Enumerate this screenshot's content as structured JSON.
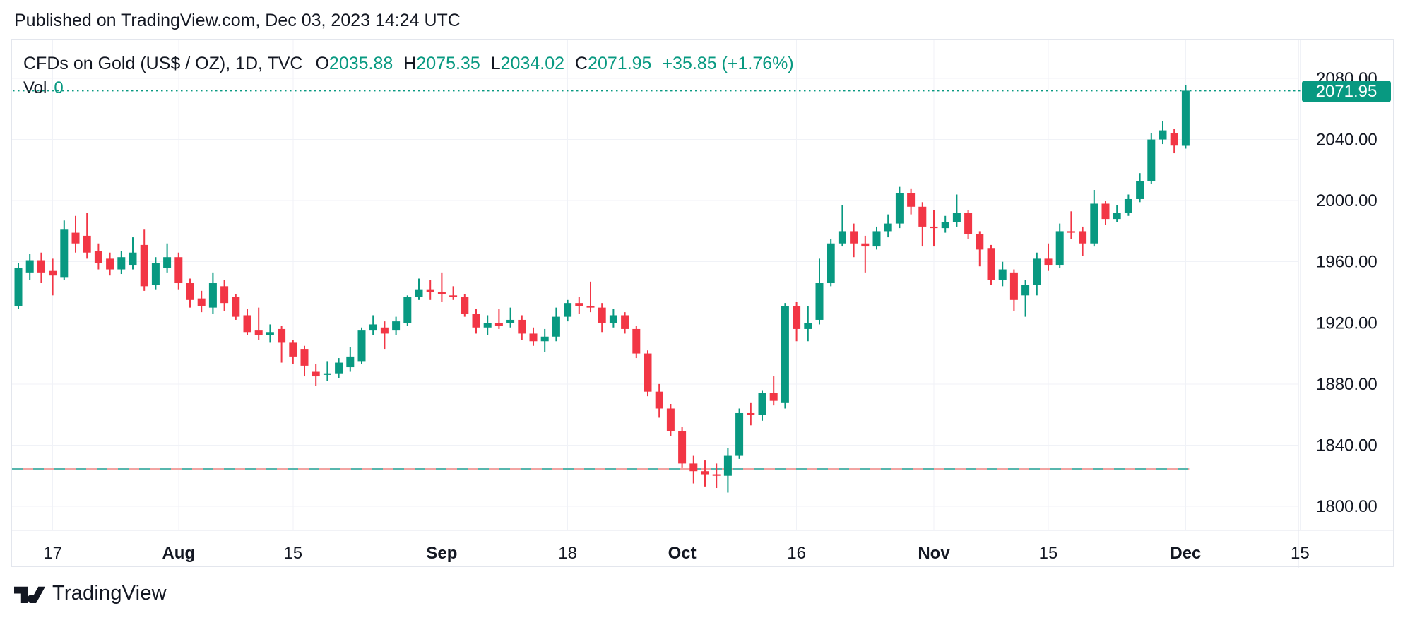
{
  "page": {
    "published": "Published on TradingView.com, Dec 03, 2023 14:24 UTC"
  },
  "legend": {
    "title": "CFDs on Gold (US$ / OZ), 1D, TVC",
    "o_label": "O",
    "o_value": "2035.88",
    "h_label": "H",
    "h_value": "2075.35",
    "l_label": "L",
    "l_value": "2034.02",
    "c_label": "C",
    "c_value": "2071.95",
    "change": "+35.85 (+1.76%)"
  },
  "volume": {
    "label": "Vol",
    "value": "0"
  },
  "price_axis": {
    "current_price_label": "2071.95"
  },
  "footer": {
    "brand": "TradingView"
  },
  "colors": {
    "up": "#089981",
    "down": "#F23645",
    "text": "#131722",
    "grid": "#F0F2F7",
    "border": "#E3E6ED",
    "level_teal": "#57B6AD",
    "level_pink": "#F2A4A2",
    "current_line": "#089981",
    "badge_bg": "#089981",
    "badge_text": "#FFFFFF"
  },
  "chart_data": {
    "type": "candlestick",
    "title": "CFDs on Gold (US$ / OZ), 1D, TVC",
    "timeframe": "1D",
    "current_price": 2071.95,
    "level_line_price": 1824.5,
    "y_axis": {
      "ticks": [
        2080,
        2040,
        2000,
        1960,
        1920,
        1880,
        1840,
        1800
      ],
      "ylim": [
        1784,
        2105
      ],
      "grid": true
    },
    "x_axis": {
      "ticks": [
        {
          "label": "17",
          "index": 3,
          "bold": false
        },
        {
          "label": "Aug",
          "index": 14,
          "bold": true
        },
        {
          "label": "15",
          "index": 24,
          "bold": false
        },
        {
          "label": "Sep",
          "index": 37,
          "bold": true
        },
        {
          "label": "18",
          "index": 48,
          "bold": false
        },
        {
          "label": "Oct",
          "index": 58,
          "bold": true
        },
        {
          "label": "16",
          "index": 68,
          "bold": false
        },
        {
          "label": "Nov",
          "index": 80,
          "bold": true
        },
        {
          "label": "15",
          "index": 90,
          "bold": false
        },
        {
          "label": "Dec",
          "index": 102,
          "bold": true
        },
        {
          "label": "15",
          "index": 112,
          "bold": false
        }
      ]
    },
    "candles": [
      [
        "2023-07-12",
        1931,
        1959,
        1929,
        1956
      ],
      [
        "2023-07-13",
        1953,
        1965,
        1948,
        1961
      ],
      [
        "2023-07-14",
        1961,
        1966,
        1946,
        1953
      ],
      [
        "2023-07-17",
        1954,
        1962,
        1938,
        1951
      ],
      [
        "2023-07-18",
        1950,
        1987,
        1948,
        1981
      ],
      [
        "2023-07-19",
        1979,
        1990,
        1966,
        1972
      ],
      [
        "2023-07-20",
        1977,
        1992,
        1962,
        1966
      ],
      [
        "2023-07-21",
        1967,
        1972,
        1955,
        1959
      ],
      [
        "2023-07-24",
        1962,
        1966,
        1951,
        1955
      ],
      [
        "2023-07-25",
        1955,
        1967,
        1952,
        1963
      ],
      [
        "2023-07-26",
        1958,
        1976,
        1955,
        1966
      ],
      [
        "2023-07-27",
        1971,
        1981,
        1941,
        1944
      ],
      [
        "2023-07-28",
        1945,
        1963,
        1942,
        1959
      ],
      [
        "2023-07-31",
        1956,
        1972,
        1953,
        1963
      ],
      [
        "2023-08-01",
        1963,
        1966,
        1942,
        1946
      ],
      [
        "2023-08-02",
        1946,
        1949,
        1930,
        1935
      ],
      [
        "2023-08-03",
        1936,
        1941,
        1927,
        1931
      ],
      [
        "2023-08-04",
        1930,
        1953,
        1926,
        1946
      ],
      [
        "2023-08-07",
        1944,
        1948,
        1928,
        1933
      ],
      [
        "2023-08-08",
        1937,
        1939,
        1922,
        1924
      ],
      [
        "2023-08-09",
        1925,
        1929,
        1912,
        1914
      ],
      [
        "2023-08-10",
        1915,
        1930,
        1909,
        1912
      ],
      [
        "2023-08-11",
        1912,
        1919,
        1907,
        1914
      ],
      [
        "2023-08-14",
        1916,
        1918,
        1894,
        1907
      ],
      [
        "2023-08-15",
        1907,
        1909,
        1893,
        1898
      ],
      [
        "2023-08-16",
        1903,
        1905,
        1885,
        1892
      ],
      [
        "2023-08-17",
        1888,
        1893,
        1879,
        1885
      ],
      [
        "2023-08-18",
        1886,
        1895,
        1882,
        1887
      ],
      [
        "2023-08-21",
        1887,
        1897,
        1884,
        1894
      ],
      [
        "2023-08-22",
        1891,
        1904,
        1888,
        1898
      ],
      [
        "2023-08-23",
        1895,
        1917,
        1893,
        1915
      ],
      [
        "2023-08-24",
        1915,
        1925,
        1912,
        1919
      ],
      [
        "2023-08-25",
        1917,
        1921,
        1903,
        1913
      ],
      [
        "2023-08-28",
        1915,
        1924,
        1912,
        1921
      ],
      [
        "2023-08-29",
        1920,
        1938,
        1918,
        1937
      ],
      [
        "2023-08-30",
        1937,
        1949,
        1935,
        1942
      ],
      [
        "2023-08-31",
        1942,
        1948,
        1935,
        1940
      ],
      [
        "2023-09-01",
        1940,
        1953,
        1934,
        1939
      ],
      [
        "2023-09-04",
        1938,
        1944,
        1935,
        1937
      ],
      [
        "2023-09-05",
        1937,
        1939,
        1924,
        1926
      ],
      [
        "2023-09-06",
        1926,
        1929,
        1913,
        1917
      ],
      [
        "2023-09-07",
        1917,
        1925,
        1912,
        1920
      ],
      [
        "2023-09-08",
        1920,
        1929,
        1916,
        1918
      ],
      [
        "2023-09-11",
        1920,
        1930,
        1917,
        1922
      ],
      [
        "2023-09-12",
        1922,
        1925,
        1909,
        1913
      ],
      [
        "2023-09-13",
        1913,
        1917,
        1905,
        1908
      ],
      [
        "2023-09-14",
        1908,
        1916,
        1901,
        1911
      ],
      [
        "2023-09-15",
        1911,
        1930,
        1908,
        1924
      ],
      [
        "2023-09-18",
        1924,
        1935,
        1921,
        1933
      ],
      [
        "2023-09-19",
        1933,
        1937,
        1926,
        1931
      ],
      [
        "2023-09-20",
        1931,
        1947,
        1927,
        1930
      ],
      [
        "2023-09-21",
        1930,
        1933,
        1914,
        1920
      ],
      [
        "2023-09-22",
        1920,
        1929,
        1917,
        1925
      ],
      [
        "2023-09-25",
        1925,
        1927,
        1913,
        1916
      ],
      [
        "2023-09-26",
        1916,
        1918,
        1897,
        1900
      ],
      [
        "2023-09-27",
        1900,
        1902,
        1872,
        1875
      ],
      [
        "2023-09-28",
        1875,
        1880,
        1858,
        1864
      ],
      [
        "2023-09-29",
        1864,
        1867,
        1846,
        1849
      ],
      [
        "2023-10-02",
        1849,
        1852,
        1825,
        1828
      ],
      [
        "2023-10-03",
        1828,
        1833,
        1815,
        1823
      ],
      [
        "2023-10-04",
        1823,
        1830,
        1813,
        1821
      ],
      [
        "2023-10-05",
        1821,
        1828,
        1812,
        1820
      ],
      [
        "2023-10-06",
        1820,
        1838,
        1809,
        1833
      ],
      [
        "2023-10-09",
        1833,
        1864,
        1831,
        1861
      ],
      [
        "2023-10-10",
        1861,
        1868,
        1853,
        1860
      ],
      [
        "2023-10-11",
        1860,
        1876,
        1856,
        1874
      ],
      [
        "2023-10-12",
        1874,
        1885,
        1866,
        1869
      ],
      [
        "2023-10-13",
        1868,
        1933,
        1864,
        1931
      ],
      [
        "2023-10-16",
        1931,
        1934,
        1908,
        1916
      ],
      [
        "2023-10-17",
        1916,
        1931,
        1908,
        1920
      ],
      [
        "2023-10-18",
        1922,
        1962,
        1919,
        1946
      ],
      [
        "2023-10-19",
        1946,
        1975,
        1944,
        1972
      ],
      [
        "2023-10-20",
        1972,
        1997,
        1970,
        1980
      ],
      [
        "2023-10-23",
        1980,
        1985,
        1963,
        1972
      ],
      [
        "2023-10-24",
        1972,
        1977,
        1953,
        1970
      ],
      [
        "2023-10-25",
        1970,
        1983,
        1968,
        1980
      ],
      [
        "2023-10-26",
        1980,
        1991,
        1976,
        1985
      ],
      [
        "2023-10-27",
        1985,
        2009,
        1982,
        2005
      ],
      [
        "2023-10-30",
        2005,
        2008,
        1991,
        1996
      ],
      [
        "2023-10-31",
        1996,
        1999,
        1970,
        1983
      ],
      [
        "2023-11-01",
        1983,
        1994,
        1970,
        1982
      ],
      [
        "2023-11-02",
        1982,
        1990,
        1979,
        1986
      ],
      [
        "2023-11-03",
        1986,
        2004,
        1983,
        1992
      ],
      [
        "2023-11-06",
        1992,
        1994,
        1975,
        1978
      ],
      [
        "2023-11-07",
        1978,
        1980,
        1957,
        1968
      ],
      [
        "2023-11-08",
        1969,
        1971,
        1945,
        1948
      ],
      [
        "2023-11-09",
        1948,
        1960,
        1944,
        1955
      ],
      [
        "2023-11-10",
        1953,
        1955,
        1928,
        1935
      ],
      [
        "2023-11-13",
        1938,
        1948,
        1924,
        1945
      ],
      [
        "2023-11-14",
        1945,
        1966,
        1938,
        1962
      ],
      [
        "2023-11-15",
        1962,
        1972,
        1954,
        1958
      ],
      [
        "2023-11-16",
        1958,
        1985,
        1956,
        1980
      ],
      [
        "2023-11-17",
        1980,
        1993,
        1975,
        1979
      ],
      [
        "2023-11-20",
        1980,
        1983,
        1964,
        1972
      ],
      [
        "2023-11-21",
        1972,
        2007,
        1970,
        1998
      ],
      [
        "2023-11-22",
        1998,
        2000,
        1984,
        1988
      ],
      [
        "2023-11-23",
        1988,
        1997,
        1986,
        1992
      ],
      [
        "2023-11-24",
        1992,
        2004,
        1990,
        2001
      ],
      [
        "2023-11-27",
        2001,
        2018,
        1999,
        2013
      ],
      [
        "2023-11-28",
        2013,
        2044,
        2011,
        2040
      ],
      [
        "2023-11-29",
        2040,
        2052,
        2037,
        2046
      ],
      [
        "2023-11-30",
        2044,
        2047,
        2031,
        2036
      ],
      [
        "2023-12-01",
        2035.88,
        2075.35,
        2034.02,
        2071.95
      ]
    ]
  }
}
